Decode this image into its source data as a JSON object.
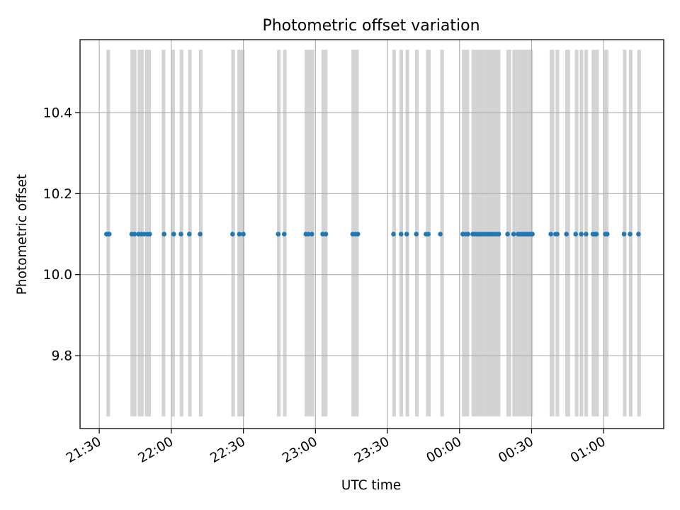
{
  "chart_data": {
    "type": "scatter",
    "title": "Photometric offset variation",
    "xlabel": "UTC time",
    "ylabel": "Photometric offset",
    "x_ticks": [
      "21:30",
      "22:00",
      "22:30",
      "23:00",
      "23:30",
      "00:00",
      "00:30",
      "01:00"
    ],
    "y_ticks": [
      "9.8",
      "10.0",
      "10.2",
      "10.4"
    ],
    "xlim": [
      "21:22",
      "01:25"
    ],
    "ylim": [
      9.62,
      10.58
    ],
    "grid": true,
    "band_range": [
      9.65,
      10.555
    ],
    "colors": {
      "points": "#1f77b4",
      "bands": "#d3d3d3",
      "grid": "#b0b0b0"
    },
    "series": [
      {
        "y_value": 10.1,
        "x": [
          "21:33:00",
          "21:33:40",
          "21:34:10",
          "21:43:30",
          "21:44:40",
          "21:46:20",
          "21:47:30",
          "21:48:40",
          "21:50:00",
          "21:51:00",
          "21:57:00",
          "22:01:00",
          "22:04:00",
          "22:07:30",
          "22:12:00",
          "22:25:30",
          "22:28:20",
          "22:30:00",
          "22:44:30",
          "22:47:00",
          "22:56:00",
          "22:57:00",
          "22:58:30",
          "23:03:00",
          "23:04:20",
          "23:15:30",
          "23:16:40",
          "23:17:40",
          "23:32:30",
          "23:35:40",
          "23:38:00",
          "23:42:00",
          "23:46:00",
          "23:47:00",
          "23:52:00",
          "00:01:20",
          "00:02:30",
          "00:03:30",
          "00:05:30",
          "00:06:20",
          "00:07:20",
          "00:08:10",
          "00:09:00",
          "00:09:50",
          "00:10:40",
          "00:11:40",
          "00:12:30",
          "00:13:30",
          "00:14:30",
          "00:15:30",
          "00:16:20",
          "00:20:00",
          "00:22:30",
          "00:24:20",
          "00:25:00",
          "00:25:40",
          "00:26:20",
          "00:27:00",
          "00:27:40",
          "00:28:20",
          "00:29:00",
          "00:29:40",
          "00:30:20",
          "00:38:00",
          "00:40:00",
          "00:40:40",
          "00:44:30",
          "00:48:20",
          "00:50:40",
          "00:52:40",
          "00:55:30",
          "00:56:20",
          "00:57:00",
          "01:00:40",
          "01:01:30",
          "01:08:30",
          "01:11:00",
          "01:14:30"
        ]
      }
    ],
    "bands": [
      [
        "21:33:00",
        "21:34:30"
      ],
      [
        "21:43:00",
        "21:45:30"
      ],
      [
        "21:46:00",
        "21:48:30"
      ],
      [
        "21:49:00",
        "21:51:30"
      ],
      [
        "21:56:00",
        "21:57:30"
      ],
      [
        "22:00:00",
        "22:01:30"
      ],
      [
        "22:03:30",
        "22:05:00"
      ],
      [
        "22:07:00",
        "22:08:30"
      ],
      [
        "22:11:30",
        "22:13:00"
      ],
      [
        "22:25:00",
        "22:26:30"
      ],
      [
        "22:27:30",
        "22:30:30"
      ],
      [
        "22:44:00",
        "22:45:30"
      ],
      [
        "22:46:30",
        "22:48:00"
      ],
      [
        "22:55:30",
        "22:59:30"
      ],
      [
        "23:02:30",
        "23:05:00"
      ],
      [
        "23:15:00",
        "23:18:00"
      ],
      [
        "23:32:00",
        "23:33:30"
      ],
      [
        "23:35:00",
        "23:36:30"
      ],
      [
        "23:37:30",
        "23:39:00"
      ],
      [
        "23:41:30",
        "23:43:00"
      ],
      [
        "23:46:00",
        "23:48:00"
      ],
      [
        "23:52:00",
        "23:53:30"
      ],
      [
        "00:01:00",
        "00:04:00"
      ],
      [
        "00:05:00",
        "00:10:30"
      ],
      [
        "00:10:30",
        "00:17:00"
      ],
      [
        "00:19:30",
        "00:21:30"
      ],
      [
        "00:22:00",
        "00:24:00"
      ],
      [
        "00:24:00",
        "00:30:30"
      ],
      [
        "00:37:30",
        "00:39:30"
      ],
      [
        "00:40:00",
        "00:41:30"
      ],
      [
        "00:44:00",
        "00:46:00"
      ],
      [
        "00:48:00",
        "00:49:30"
      ],
      [
        "00:50:00",
        "00:51:30"
      ],
      [
        "00:52:00",
        "00:53:30"
      ],
      [
        "00:55:00",
        "00:58:00"
      ],
      [
        "01:00:00",
        "01:02:00"
      ],
      [
        "01:08:00",
        "01:09:30"
      ],
      [
        "01:10:30",
        "01:12:00"
      ],
      [
        "01:14:00",
        "01:15:30"
      ]
    ]
  }
}
